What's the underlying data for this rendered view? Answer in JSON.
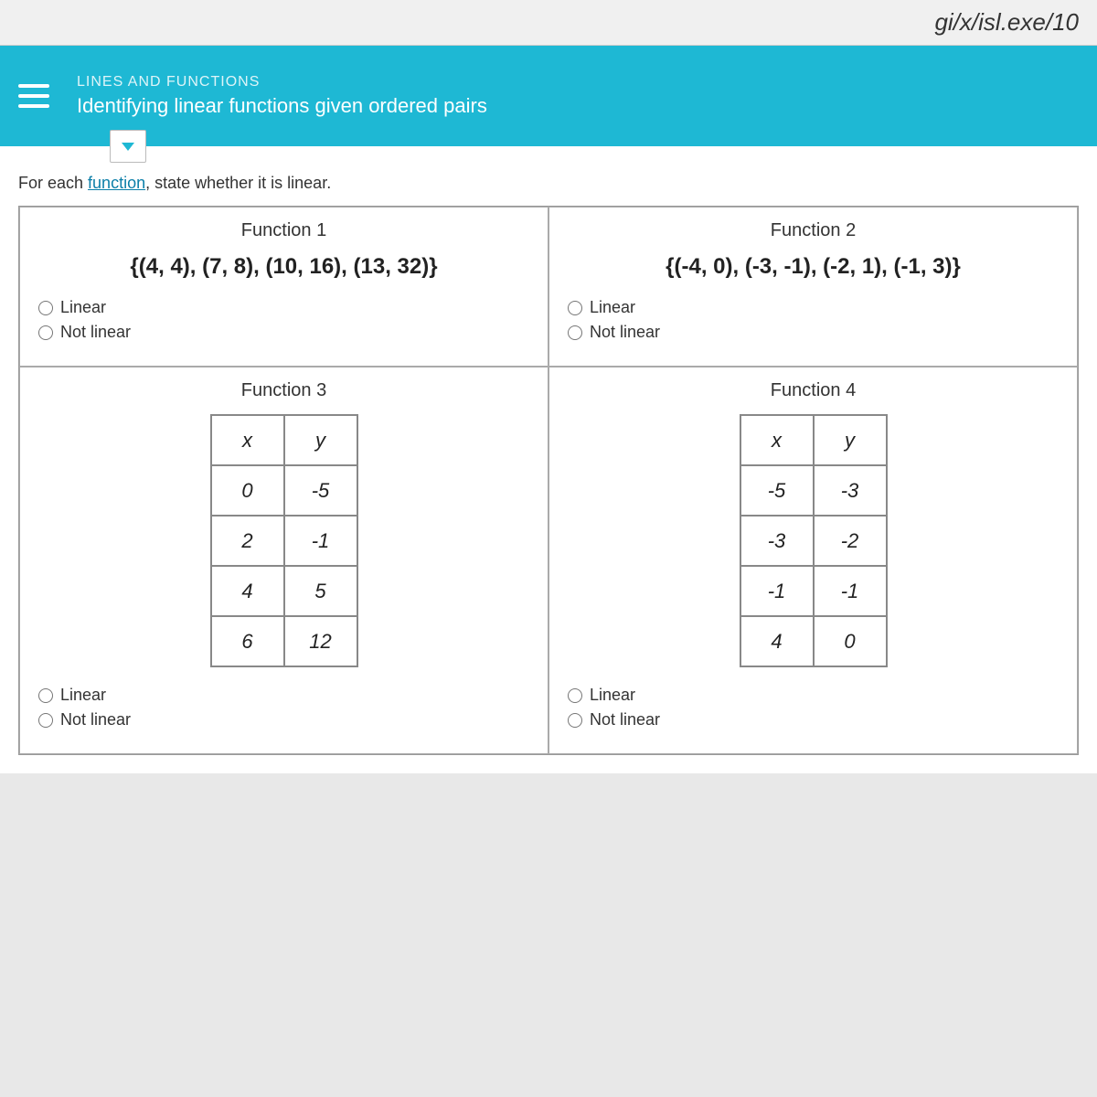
{
  "url_fragment": "gi/x/isl.exe/10",
  "header": {
    "category": "LINES AND FUNCTIONS",
    "title": "Identifying linear functions given ordered pairs"
  },
  "instruction_prefix": "For each ",
  "instruction_link": "function",
  "instruction_suffix": ", state whether it is linear.",
  "functions": {
    "f1": {
      "label": "Function 1",
      "pairs": "{(4, 4), (7, 8), (10, 16), (13, 32)}",
      "opt_linear": "Linear",
      "opt_not": "Not linear"
    },
    "f2": {
      "label": "Function 2",
      "pairs": "{(-4, 0), (-3, -1), (-2, 1), (-1, 3)}",
      "opt_linear": "Linear",
      "opt_not": "Not linear"
    },
    "f3": {
      "label": "Function 3",
      "table": {
        "columns": [
          "x",
          "y"
        ],
        "rows": [
          [
            "0",
            "-5"
          ],
          [
            "2",
            "-1"
          ],
          [
            "4",
            "5"
          ],
          [
            "6",
            "12"
          ]
        ]
      },
      "opt_linear": "Linear",
      "opt_not": "Not linear"
    },
    "f4": {
      "label": "Function 4",
      "table": {
        "columns": [
          "x",
          "y"
        ],
        "rows": [
          [
            "-5",
            "-3"
          ],
          [
            "-3",
            "-2"
          ],
          [
            "-1",
            "-1"
          ],
          [
            "4",
            "0"
          ]
        ]
      },
      "opt_linear": "Linear",
      "opt_not": "Not linear"
    }
  },
  "colors": {
    "header_bg": "#1eb8d4",
    "link": "#0b7ea8",
    "border": "#999999",
    "cell_border": "#aaaaaa",
    "table_border": "#888888"
  }
}
